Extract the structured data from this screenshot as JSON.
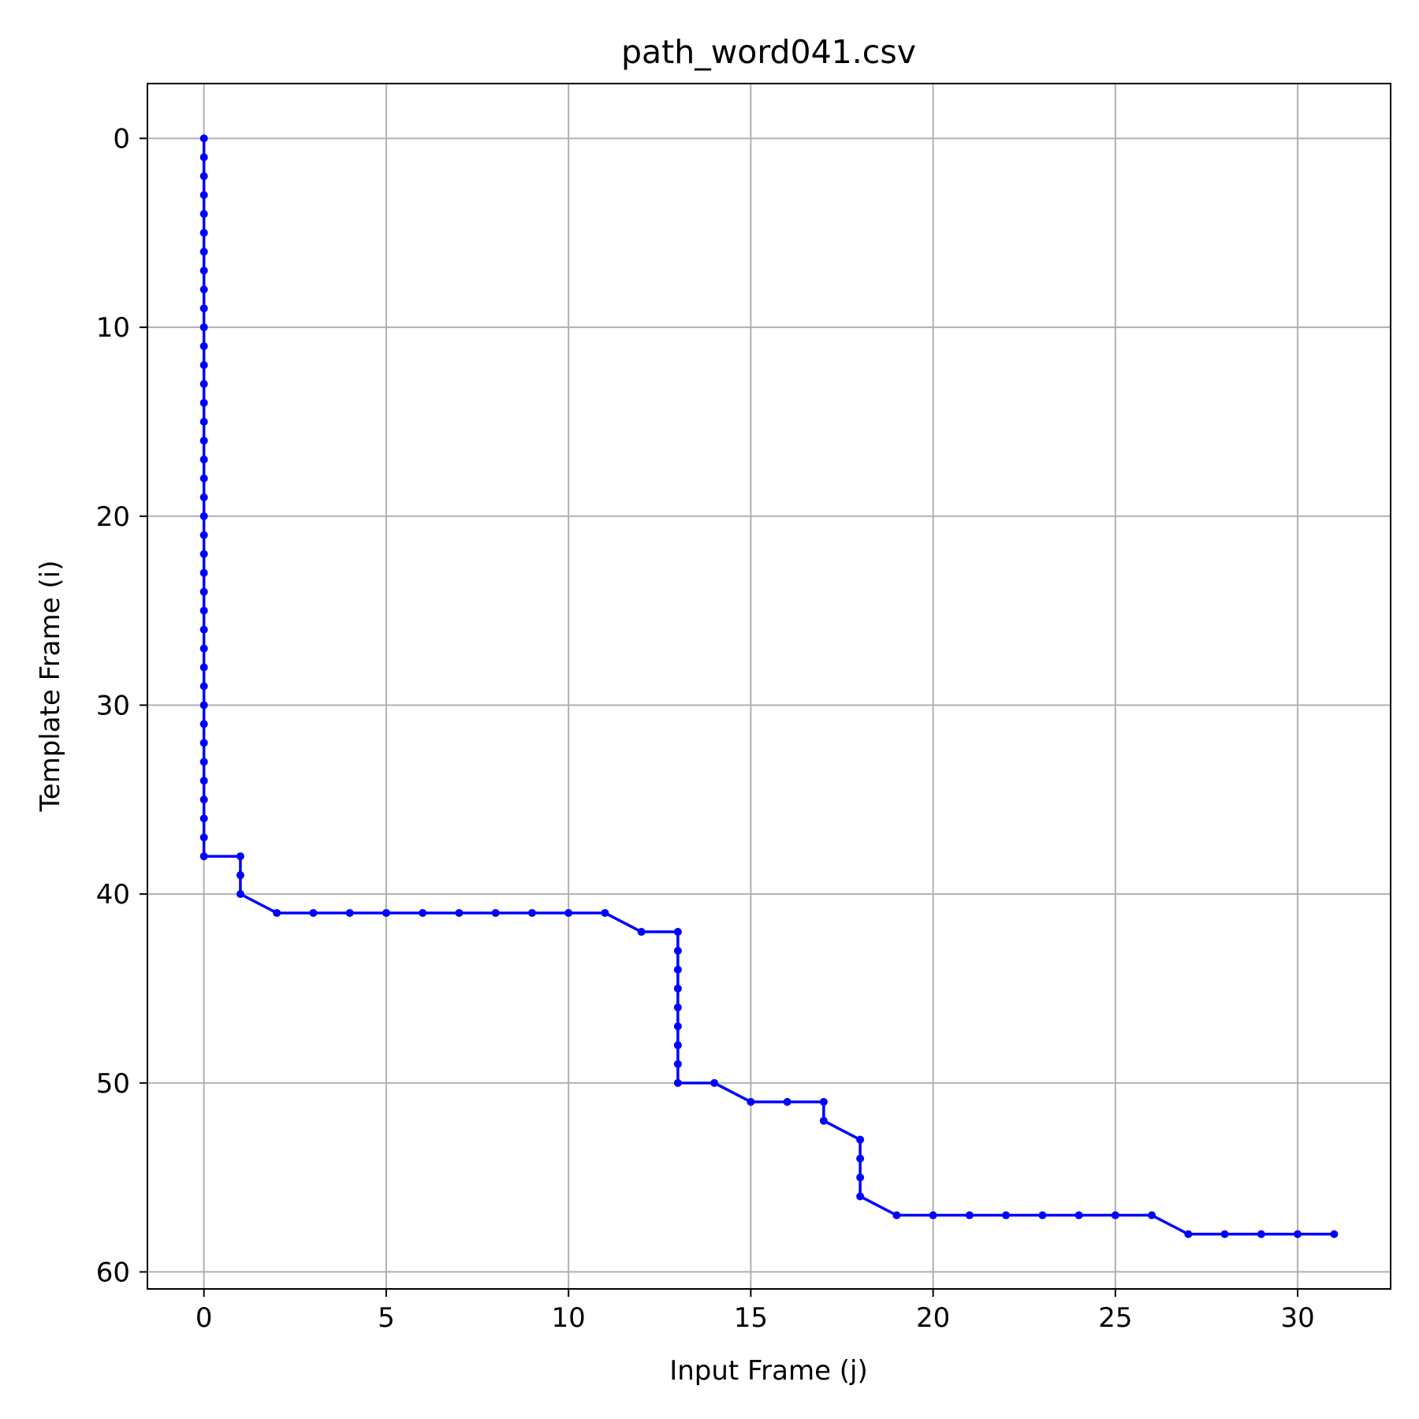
{
  "chart_data": {
    "type": "line",
    "title": "path_word041.csv",
    "xlabel": "Input Frame (j)",
    "ylabel": "Template Frame (i)",
    "xlim": [
      -1.55,
      32.55
    ],
    "ylim": [
      60.9,
      -2.9
    ],
    "y_inverted": true,
    "x_ticks": [
      0,
      5,
      10,
      15,
      20,
      25,
      30
    ],
    "x_tick_labels": [
      "0",
      "5",
      "10",
      "15",
      "20",
      "25",
      "30"
    ],
    "y_ticks": [
      0,
      10,
      20,
      30,
      40,
      50,
      60
    ],
    "y_tick_labels": [
      "0",
      "10",
      "20",
      "30",
      "40",
      "50",
      "60"
    ],
    "grid": true,
    "series": [
      {
        "color": "#0000ff",
        "marker": "circle",
        "points": [
          [
            0,
            0
          ],
          [
            0,
            1
          ],
          [
            0,
            2
          ],
          [
            0,
            3
          ],
          [
            0,
            4
          ],
          [
            0,
            5
          ],
          [
            0,
            6
          ],
          [
            0,
            7
          ],
          [
            0,
            8
          ],
          [
            0,
            9
          ],
          [
            0,
            10
          ],
          [
            0,
            11
          ],
          [
            0,
            12
          ],
          [
            0,
            13
          ],
          [
            0,
            14
          ],
          [
            0,
            15
          ],
          [
            0,
            16
          ],
          [
            0,
            17
          ],
          [
            0,
            18
          ],
          [
            0,
            19
          ],
          [
            0,
            20
          ],
          [
            0,
            21
          ],
          [
            0,
            22
          ],
          [
            0,
            23
          ],
          [
            0,
            24
          ],
          [
            0,
            25
          ],
          [
            0,
            26
          ],
          [
            0,
            27
          ],
          [
            0,
            28
          ],
          [
            0,
            29
          ],
          [
            0,
            30
          ],
          [
            0,
            31
          ],
          [
            0,
            32
          ],
          [
            0,
            33
          ],
          [
            0,
            34
          ],
          [
            0,
            35
          ],
          [
            0,
            36
          ],
          [
            0,
            37
          ],
          [
            0,
            38
          ],
          [
            1,
            38
          ],
          [
            1,
            39
          ],
          [
            1,
            40
          ],
          [
            2,
            41
          ],
          [
            3,
            41
          ],
          [
            4,
            41
          ],
          [
            5,
            41
          ],
          [
            6,
            41
          ],
          [
            7,
            41
          ],
          [
            8,
            41
          ],
          [
            9,
            41
          ],
          [
            10,
            41
          ],
          [
            11,
            41
          ],
          [
            12,
            42
          ],
          [
            13,
            42
          ],
          [
            13,
            43
          ],
          [
            13,
            44
          ],
          [
            13,
            45
          ],
          [
            13,
            46
          ],
          [
            13,
            47
          ],
          [
            13,
            48
          ],
          [
            13,
            49
          ],
          [
            13,
            50
          ],
          [
            14,
            50
          ],
          [
            15,
            51
          ],
          [
            16,
            51
          ],
          [
            17,
            51
          ],
          [
            17,
            52
          ],
          [
            18,
            53
          ],
          [
            18,
            54
          ],
          [
            18,
            55
          ],
          [
            18,
            56
          ],
          [
            19,
            57
          ],
          [
            20,
            57
          ],
          [
            21,
            57
          ],
          [
            22,
            57
          ],
          [
            23,
            57
          ],
          [
            24,
            57
          ],
          [
            25,
            57
          ],
          [
            26,
            57
          ],
          [
            27,
            58
          ],
          [
            28,
            58
          ],
          [
            29,
            58
          ],
          [
            30,
            58
          ],
          [
            31,
            58
          ]
        ]
      }
    ]
  }
}
